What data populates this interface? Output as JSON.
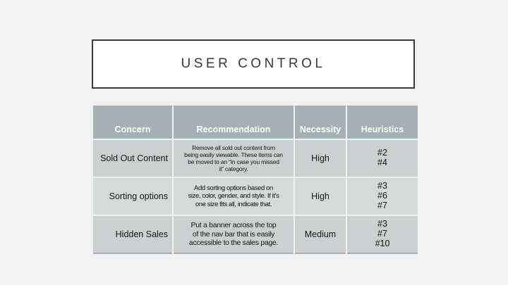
{
  "slide": {
    "title": "USER CONTROL"
  },
  "table": {
    "headers": [
      "Concern",
      "Recommendation",
      "Necessity",
      "Heuristics"
    ],
    "rows": [
      {
        "concern": "Sold Out Content",
        "recommendation": "Remove all sold out content from\nbeing easily viewable. These items can\nbe moved to an “In case you missed\nit” category.",
        "necessity": "High",
        "heuristics": "#2\n#4"
      },
      {
        "concern": "Sorting options",
        "recommendation": "Add sorting options based on\nsize, color, gender, and style. If it’s\none size fits all, indicate that.",
        "necessity": "High",
        "heuristics": "#3\n#6\n#7"
      },
      {
        "concern": "Hidden Sales",
        "recommendation": "Put a banner across the top\nof the nav bar that is easily\naccessible to the sales page.",
        "necessity": "Medium",
        "heuristics": "#3\n#7\n#10"
      }
    ]
  },
  "colors": {
    "background": "#f1f1f2",
    "title_border": "#3b3b3e",
    "title_text": "#3a3a3c",
    "header_bg": "#a4b0b5",
    "header_text": "#ffffff",
    "row_bg_dark": "#cbd1d0",
    "row_bg_light": "#d6dad8",
    "table_bottom_border": "#a9afbd"
  }
}
